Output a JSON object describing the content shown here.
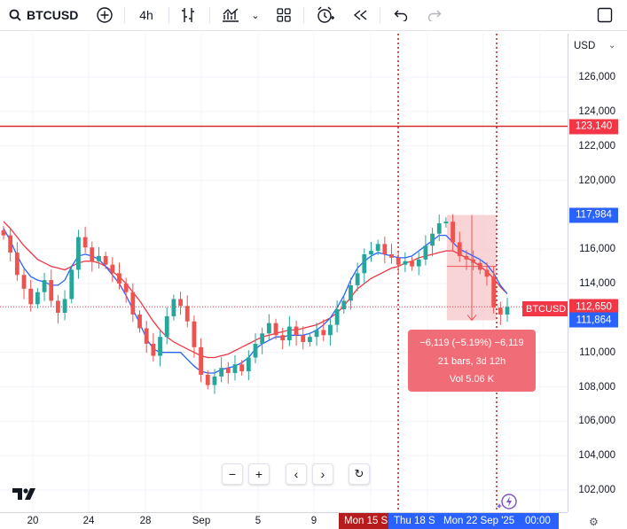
{
  "toolbar": {
    "symbol": "BTCUSD",
    "interval": "4h"
  },
  "price_axis": {
    "currency": "USD",
    "labels": [
      "126,000",
      "124,000",
      "122,000",
      "120,000",
      "116,000",
      "114,000",
      "110,000",
      "108,000",
      "106,000",
      "104,000",
      "102,000"
    ],
    "badges": {
      "alert": "123,140",
      "high": "117,984",
      "current": "112,650",
      "low": "111,864"
    },
    "symbol_tag": "BTCUSD"
  },
  "time_axis": {
    "labels": [
      "20",
      "24",
      "28",
      "Sep",
      "5",
      "9"
    ],
    "badges": [
      "Mon 15 S",
      "Thu 18 S",
      "Mon 22 Sep '25",
      "00:00"
    ]
  },
  "measure": {
    "line1": "−6,119 (−5.19%) −6,119",
    "line2": "21 bars, 3d 12h",
    "line3": "Vol 5.06 K"
  },
  "colors": {
    "up": "#26a69a",
    "down": "#ef5350",
    "sma_blue": "#2962ff",
    "sma_red": "#f23645",
    "alert_line": "#d32f2f",
    "measure_fill": "#f7c5ca"
  },
  "chart_data": {
    "type": "candlestick",
    "y_range": [
      101000,
      127500
    ],
    "y_ticks": [
      126000,
      124000,
      122000,
      120000,
      116000,
      114000,
      110000,
      108000,
      106000,
      104000,
      102000
    ],
    "closes": [
      116800,
      115800,
      114500,
      113700,
      112800,
      113500,
      114200,
      113000,
      112300,
      113100,
      114800,
      116700,
      116100,
      115300,
      115600,
      115100,
      114600,
      114000,
      113500,
      112200,
      111400,
      110500,
      109800,
      110900,
      112100,
      113100,
      112700,
      111800,
      110300,
      108700,
      108100,
      108600,
      109100,
      108800,
      109300,
      108900,
      109700,
      110500,
      111100,
      111700,
      111000,
      110700,
      111500,
      111000,
      110600,
      110900,
      111300,
      111000,
      111600,
      112500,
      113000,
      113900,
      114600,
      115700,
      115900,
      116300,
      115700,
      115500,
      115100,
      115300,
      115000,
      115400,
      116200,
      116900,
      117500,
      117600,
      116400,
      115600,
      115400,
      115200,
      114800,
      114400,
      112600,
      112200,
      112650
    ],
    "sma_fast": [
      117200,
      116500,
      115600,
      114900,
      114400,
      114200,
      114100,
      113900,
      113900,
      114200,
      115000,
      115600,
      115700,
      115600,
      115400,
      115000,
      114500,
      114000,
      113300,
      112500,
      111700,
      110800,
      110200,
      110000,
      110000,
      110000,
      110000,
      109600,
      109200,
      108900,
      108800,
      108800,
      109000,
      109100,
      109200,
      109400,
      109700,
      110200,
      110500,
      110700,
      110900,
      110900,
      111000,
      111000,
      111000,
      111100,
      111300,
      111600,
      112000,
      112600,
      113300,
      114200,
      114900,
      115300,
      115600,
      115800,
      115700,
      115600,
      115500,
      115500,
      115600,
      115900,
      116200,
      116500,
      116800,
      116800,
      116400,
      116000,
      115800,
      115600,
      115400,
      115100,
      114600,
      113900,
      113400
    ],
    "sma_slow": [
      117600,
      117200,
      116700,
      116200,
      115800,
      115400,
      115200,
      115000,
      114900,
      114800,
      115000,
      115200,
      115300,
      115300,
      115200,
      115000,
      114700,
      114400,
      114000,
      113500,
      113000,
      112400,
      111800,
      111300,
      110900,
      110600,
      110400,
      110200,
      110000,
      109800,
      109700,
      109700,
      109800,
      109900,
      110100,
      110300,
      110500,
      110700,
      110900,
      111000,
      111100,
      111200,
      111300,
      111300,
      111400,
      111500,
      111600,
      111800,
      112000,
      112300,
      112700,
      113200,
      113700,
      114000,
      114300,
      114500,
      114700,
      114900,
      115000,
      115200,
      115300,
      115500,
      115600,
      115700,
      115800,
      115900,
      115900,
      115700,
      115500,
      115300,
      115000,
      114700,
      114300,
      113800,
      113400
    ],
    "alert_price": 123140,
    "current_price": 112650,
    "measure_range": [
      111864,
      117984
    ]
  }
}
